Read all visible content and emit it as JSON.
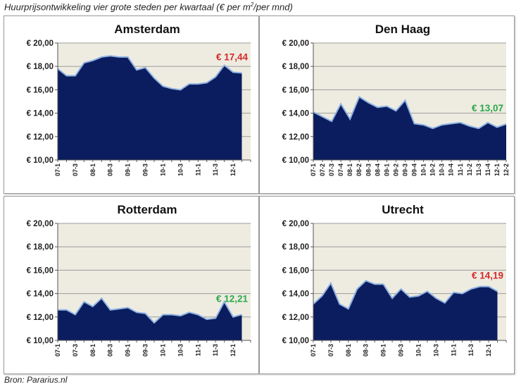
{
  "title": "Huurprijsontwikkeling  vier grote steden per kwartaal (€ per m",
  "title_sup": "2",
  "title_suffix": "/per mnd)",
  "source": "Bron: Pararius.nl",
  "colors": {
    "area": "#0b1d5e",
    "line": "#8fb3e3",
    "plot_bg": "#eeece1",
    "gridline": "#9c9c9c",
    "red": "#d42a2a",
    "green": "#2aa84a"
  },
  "chart_data": [
    {
      "type": "area",
      "title": "Amsterdam",
      "ylim": [
        10,
        20
      ],
      "yticks": [
        "€ 10,00",
        "€ 12,00",
        "€ 14,00",
        "€ 16,00",
        "€ 18,00",
        "€ 20,00"
      ],
      "x_count": 23,
      "xtick_labels": [
        "07-1",
        "07-3",
        "08-1",
        "08-3",
        "09-1",
        "09-3",
        "10-1",
        "10-3",
        "11-1",
        "11-3",
        "12-1"
      ],
      "xtick_step": 2,
      "values": [
        17.8,
        17.2,
        17.2,
        18.3,
        18.5,
        18.8,
        18.9,
        18.8,
        18.8,
        17.7,
        17.9,
        17.0,
        16.3,
        16.1,
        16.0,
        16.5,
        16.5,
        16.6,
        17.1,
        18.1,
        17.5,
        17.44
      ],
      "grid": true,
      "annotation": {
        "text": "€ 17,44",
        "color": "red"
      }
    },
    {
      "type": "area",
      "title": "Den Haag",
      "ylim": [
        10,
        20
      ],
      "yticks": [
        "€ 10,00",
        "€ 12,00",
        "€ 14,00",
        "€ 16,00",
        "€ 18,00",
        "€ 20,00"
      ],
      "x_count": 22,
      "xtick_labels": [
        "07-1",
        "07-2",
        "07-3",
        "07-4",
        "08-1",
        "08-2",
        "08-3",
        "08-4",
        "09-1",
        "09-2",
        "09-3",
        "09-4",
        "10-1",
        "10-2",
        "10-3",
        "10-4",
        "11-1",
        "11-2",
        "11-3",
        "11-4",
        "12-1",
        "12-2"
      ],
      "xtick_step": 1,
      "values": [
        14.1,
        13.7,
        13.3,
        14.8,
        13.5,
        15.4,
        14.9,
        14.5,
        14.6,
        14.2,
        15.1,
        13.1,
        13.0,
        12.7,
        13.0,
        13.1,
        13.2,
        12.9,
        12.7,
        13.2,
        12.8,
        13.07
      ],
      "grid": true,
      "annotation": {
        "text": "€ 13,07",
        "color": "green"
      }
    },
    {
      "type": "area",
      "title": "Rotterdam",
      "ylim": [
        10,
        20
      ],
      "yticks": [
        "€ 10,00",
        "€ 12,00",
        "€ 14,00",
        "€ 16,00",
        "€ 18,00",
        "€ 20,00"
      ],
      "x_count": 23,
      "xtick_labels": [
        "07-1",
        "07-3",
        "08-1",
        "08-3",
        "09-1",
        "09-3",
        "10-1",
        "10-3",
        "11-1",
        "11-3",
        "12-1"
      ],
      "xtick_step": 2,
      "values": [
        12.6,
        12.6,
        12.2,
        13.3,
        12.9,
        13.6,
        12.6,
        12.7,
        12.8,
        12.4,
        12.3,
        11.5,
        12.2,
        12.2,
        12.1,
        12.4,
        12.2,
        11.8,
        11.9,
        13.3,
        12.0,
        12.21
      ],
      "grid": true,
      "annotation": {
        "text": "€ 12,21",
        "color": "green"
      }
    },
    {
      "type": "area",
      "title": "Utrecht",
      "ylim": [
        10,
        20
      ],
      "yticks": [
        "€ 10,00",
        "€ 12,00",
        "€ 14,00",
        "€ 16,00",
        "€ 18,00",
        "€ 20,00"
      ],
      "x_count": 23,
      "xtick_labels": [
        "07-1",
        "07-3",
        "08-1",
        "08-3",
        "09-1",
        "09-3",
        "10-1",
        "10-3",
        "11-1",
        "11-3",
        "12-1"
      ],
      "xtick_step": 2,
      "values": [
        13.1,
        13.8,
        14.9,
        13.1,
        12.7,
        14.4,
        15.1,
        14.8,
        14.8,
        13.6,
        14.4,
        13.7,
        13.8,
        14.2,
        13.6,
        13.2,
        14.1,
        14.0,
        14.4,
        14.6,
        14.6,
        14.19
      ],
      "grid": true,
      "annotation": {
        "text": "€ 14,19",
        "color": "red"
      }
    }
  ]
}
